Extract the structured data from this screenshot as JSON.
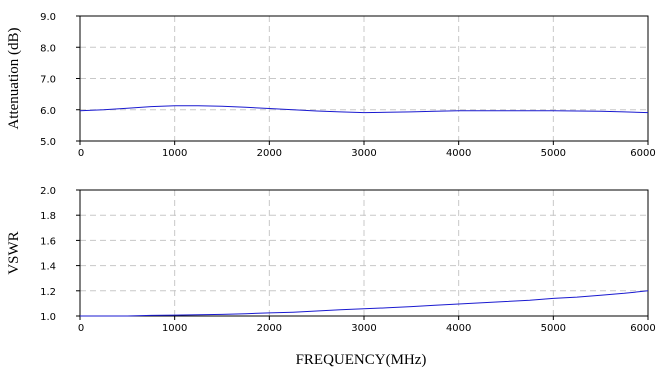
{
  "chart_data": [
    {
      "type": "line",
      "ylabel": "Attenuation (dB)",
      "xlabel": "",
      "xlim": [
        0,
        6000
      ],
      "ylim": [
        5.0,
        9.0
      ],
      "x_ticks": [
        "0",
        "1000",
        "2000",
        "3000",
        "4000",
        "5000",
        "6000"
      ],
      "y_ticks": [
        "5.0",
        "6.0",
        "7.0",
        "8.0",
        "9.0"
      ],
      "grid": true,
      "series_color": "#1a1ad0",
      "series": [
        {
          "x": [
            0,
            250,
            500,
            750,
            1000,
            1250,
            1500,
            1750,
            2000,
            2250,
            2500,
            2750,
            3000,
            3250,
            3500,
            3750,
            4000,
            4250,
            4500,
            4750,
            5000,
            5250,
            5500,
            5750,
            6000
          ],
          "values": [
            5.97,
            6.0,
            6.05,
            6.1,
            6.13,
            6.13,
            6.11,
            6.08,
            6.04,
            6.0,
            5.96,
            5.93,
            5.91,
            5.92,
            5.93,
            5.95,
            5.97,
            5.97,
            5.97,
            5.97,
            5.97,
            5.96,
            5.95,
            5.93,
            5.91
          ]
        }
      ]
    },
    {
      "type": "line",
      "ylabel": "VSWR",
      "xlabel": "FREQUENCY(MHz)",
      "xlim": [
        0,
        6000
      ],
      "ylim": [
        1.0,
        2.0
      ],
      "x_ticks": [
        "0",
        "1000",
        "2000",
        "3000",
        "4000",
        "5000",
        "6000"
      ],
      "y_ticks": [
        "1.0",
        "1.2",
        "1.4",
        "1.6",
        "1.8",
        "2.0"
      ],
      "grid": true,
      "series_color": "#1a1ad0",
      "series": [
        {
          "x": [
            0,
            250,
            500,
            750,
            1000,
            1250,
            1500,
            1750,
            2000,
            2250,
            2500,
            2750,
            3000,
            3250,
            3500,
            3750,
            4000,
            4250,
            4500,
            4750,
            5000,
            5250,
            5500,
            5750,
            6000
          ],
          "values": [
            1.0,
            1.0,
            1.0,
            1.005,
            1.007,
            1.01,
            1.013,
            1.018,
            1.025,
            1.03,
            1.04,
            1.05,
            1.057,
            1.065,
            1.075,
            1.085,
            1.095,
            1.105,
            1.115,
            1.125,
            1.14,
            1.15,
            1.165,
            1.18,
            1.2
          ]
        }
      ]
    }
  ]
}
